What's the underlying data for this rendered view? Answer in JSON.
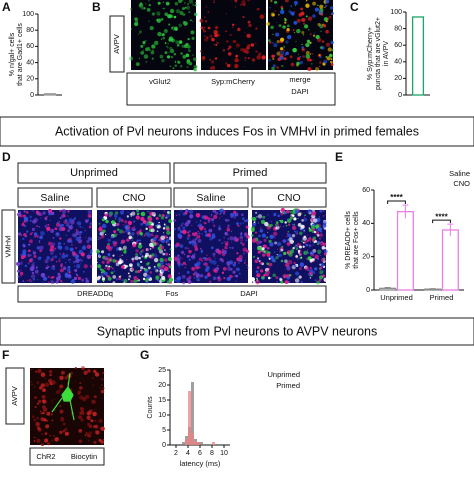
{
  "panel_labels": [
    "A",
    "B",
    "C",
    "D",
    "E",
    "F",
    "G"
  ],
  "banners": [
    "Activation of Pvl neurons induces Fos in VMHvl in primed females",
    "Synaptic inputs from Pvl neurons to AVPV neurons"
  ],
  "panel_b": {
    "region": "AVPV",
    "channels": [
      {
        "text": "vGlut2",
        "color": "#2ca02c"
      },
      {
        "text": "Syp:mCherry",
        "color": "#d62728"
      },
      {
        "text": "merge",
        "color": "#e69500"
      },
      {
        "text": "DAPI",
        "color": "#1f4fd6"
      }
    ]
  },
  "panel_d": {
    "groups": [
      "Unprimed",
      "Primed"
    ],
    "conditions": [
      "Saline",
      "CNO",
      "Saline",
      "CNO"
    ],
    "region": "VMHvl",
    "channels": [
      {
        "text": "DREADDq",
        "color": "#d62728"
      },
      {
        "text": "Fos",
        "color": "#2ca02c"
      },
      {
        "text": "DAPI",
        "color": "#1f4fd6"
      }
    ]
  },
  "panel_f": {
    "region": "AVPV",
    "channels": [
      {
        "text": "ChR2",
        "color": "#d62728"
      },
      {
        "text": "Biocytin",
        "color": "#2ca02c"
      }
    ]
  },
  "chart_data": [
    {
      "type": "bar",
      "ylabel": [
        "% n/gal+ cells",
        "that are Gad1+ cells"
      ],
      "categories": [
        null
      ],
      "values": [
        1.5
      ],
      "color": "#9a9a9a",
      "ylim": [
        0,
        100
      ],
      "yticks": [
        0,
        20,
        40,
        60,
        80,
        100
      ]
    },
    {
      "type": "bar",
      "ylabel": [
        "% Syp:mCherry+",
        "puncta that are vGlut2+",
        "in AVPV"
      ],
      "categories": [
        null
      ],
      "values": [
        94
      ],
      "color": "#1aa56a",
      "ylim": [
        0,
        100
      ],
      "yticks": [
        0,
        20,
        40,
        60,
        80,
        100
      ]
    },
    {
      "type": "bar",
      "ylabel": [
        "% DREADD+ cells",
        "that are Fos+ cells"
      ],
      "categories": [
        "Unprimed",
        "Primed"
      ],
      "series": [
        {
          "name": "Saline",
          "color": "#8c8c8c",
          "values": [
            1,
            0.5
          ],
          "errors": [
            0.5,
            0.3
          ]
        },
        {
          "name": "CNO",
          "color": "#e87ee8",
          "values": [
            47,
            36
          ],
          "errors": [
            4,
            3.5
          ]
        }
      ],
      "annotations": [
        "****",
        "****"
      ],
      "legend": "top-right",
      "ylim": [
        0,
        60
      ],
      "yticks": [
        0,
        20,
        40,
        60
      ]
    },
    {
      "type": "histogram",
      "xlabel": "latency (ms)",
      "ylabel": "Counts",
      "bins": [
        3,
        3.5,
        4,
        4.5,
        5,
        5.5,
        6,
        6.5,
        7,
        7.5,
        8,
        8.5,
        9
      ],
      "series": [
        {
          "name": "Unprimed",
          "color": "#7f7f7f",
          "values": [
            1,
            3,
            6,
            21,
            2,
            1,
            1,
            0,
            0,
            0,
            0,
            0
          ]
        },
        {
          "name": "Primed",
          "color": "#f08080",
          "values": [
            0,
            2,
            18,
            4,
            1,
            1,
            0,
            0,
            0,
            0,
            1,
            0
          ]
        }
      ],
      "legend": "top-right",
      "xlim": [
        1,
        11
      ],
      "xticks": [
        2,
        4,
        6,
        8,
        10
      ],
      "ylim": [
        0,
        25
      ],
      "yticks": [
        0,
        5,
        10,
        15,
        20,
        25
      ]
    }
  ]
}
